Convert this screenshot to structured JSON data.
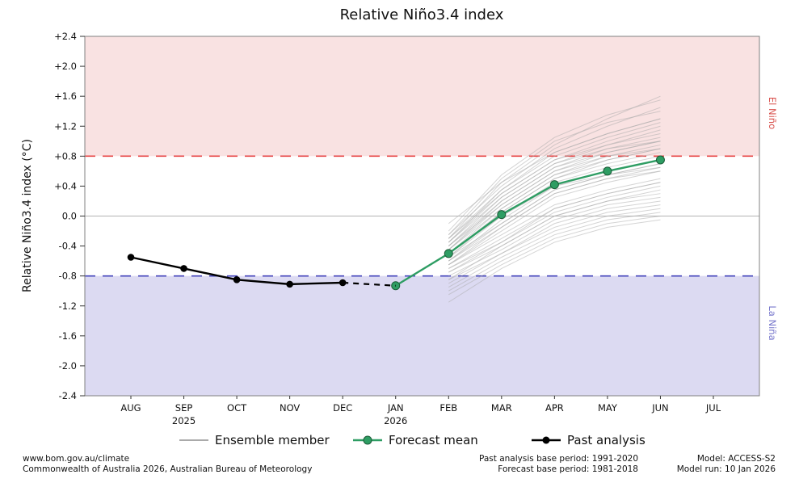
{
  "title": "Relative Niño3.4 index",
  "ylabel": "Relative Niño3.4 index (°C)",
  "right_labels": {
    "el_nino": "El Niño",
    "la_nina": "La Niña"
  },
  "legend": {
    "ensemble": "Ensemble member",
    "forecast": "Forecast mean",
    "past": "Past analysis"
  },
  "footer": {
    "url": "www.bom.gov.au/climate",
    "copyright": "Commonwealth of Australia 2026, Australian Bureau of Meteorology",
    "past_base": "Past analysis base period: 1991-2020",
    "forecast_base": "Forecast base period: 1981-2018",
    "model": "Model: ACCESS-S2",
    "model_run": "Model run: 10 Jan 2026"
  },
  "colors": {
    "el_nino_band": "#f9e2e2",
    "la_nina_band": "#dcdaf2",
    "el_nino_line": "#e84545",
    "la_nina_line": "#4444bb",
    "zero_line": "#b3b3b3",
    "forecast": "#2e9d63",
    "forecast_edge": "#1c5c38",
    "past": "#000000",
    "ensemble": "#aaaaaa",
    "border": "#808080"
  },
  "chart_data": {
    "type": "line",
    "categories": [
      "AUG",
      "SEP",
      "OCT",
      "NOV",
      "DEC",
      "JAN",
      "FEB",
      "MAR",
      "APR",
      "MAY",
      "JUN",
      "JUL"
    ],
    "year_labels": [
      {
        "index": 1,
        "label": "2025"
      },
      {
        "index": 5,
        "label": "2026"
      }
    ],
    "ylim": [
      -2.4,
      2.4
    ],
    "yticks": [
      2.4,
      2.0,
      1.6,
      1.2,
      0.8,
      0.4,
      0.0,
      -0.4,
      -0.8,
      -1.2,
      -1.6,
      -2.0,
      -2.4
    ],
    "ytick_labels": [
      "+2.4",
      "+2.0",
      "+1.6",
      "+1.2",
      "+0.8",
      "+0.4",
      "0.0",
      "-0.4",
      "-0.8",
      "-1.2",
      "-1.6",
      "-2.0",
      "-2.4"
    ],
    "thresholds": {
      "el_nino": 0.8,
      "la_nina": -0.8
    },
    "past_analysis": {
      "start_index": 0,
      "values": [
        -0.55,
        -0.7,
        -0.85,
        -0.91,
        -0.89
      ],
      "dashed_to": {
        "index": 5,
        "value": -0.93
      }
    },
    "forecast_mean": {
      "start_index": 5,
      "values": [
        -0.93,
        -0.5,
        0.02,
        0.42,
        0.6,
        0.75
      ]
    },
    "ensemble_start_index": 6,
    "ensemble_x": [
      "FEB",
      "MAR",
      "APR",
      "MAY",
      "JUN"
    ],
    "ensemble_members": [
      [
        -0.55,
        -0.1,
        0.35,
        0.55,
        0.7
      ],
      [
        -0.45,
        0.1,
        0.55,
        0.75,
        0.9
      ],
      [
        -0.65,
        -0.25,
        0.15,
        0.35,
        0.5
      ],
      [
        -0.35,
        0.25,
        0.7,
        0.95,
        1.1
      ],
      [
        -0.75,
        -0.4,
        0.0,
        0.2,
        0.3
      ],
      [
        -0.5,
        0.0,
        0.45,
        0.65,
        0.8
      ],
      [
        -0.3,
        0.35,
        0.85,
        1.1,
        1.3
      ],
      [
        -0.85,
        -0.5,
        -0.15,
        0.05,
        0.15
      ],
      [
        -0.6,
        -0.15,
        0.3,
        0.5,
        0.65
      ],
      [
        -0.4,
        0.15,
        0.6,
        0.85,
        1.0
      ],
      [
        -0.95,
        -0.55,
        -0.2,
        0.0,
        0.1
      ],
      [
        -0.25,
        0.4,
        0.9,
        1.2,
        1.45
      ],
      [
        -0.7,
        -0.3,
        0.1,
        0.3,
        0.45
      ],
      [
        -0.5,
        0.05,
        0.5,
        0.7,
        0.85
      ],
      [
        -1.05,
        -0.65,
        -0.3,
        -0.1,
        0.0
      ],
      [
        -0.35,
        0.3,
        0.75,
        1.0,
        1.2
      ],
      [
        -0.6,
        -0.05,
        0.4,
        0.6,
        0.75
      ],
      [
        -0.45,
        0.2,
        0.65,
        0.9,
        1.05
      ],
      [
        -0.8,
        -0.45,
        -0.05,
        0.15,
        0.25
      ],
      [
        -0.3,
        0.45,
        0.95,
        1.3,
        1.6
      ],
      [
        -0.65,
        -0.2,
        0.25,
        0.45,
        0.6
      ],
      [
        -0.55,
        0.0,
        0.4,
        0.55,
        0.65
      ],
      [
        -1.15,
        -0.7,
        -0.35,
        -0.15,
        -0.05
      ],
      [
        -0.4,
        0.25,
        0.7,
        0.9,
        1.0
      ],
      [
        -0.7,
        -0.35,
        0.05,
        0.25,
        0.4
      ],
      [
        -0.25,
        0.5,
        1.0,
        1.25,
        1.4
      ],
      [
        -0.85,
        -0.4,
        0.0,
        0.2,
        0.35
      ],
      [
        -0.5,
        0.1,
        0.55,
        0.8,
        0.95
      ],
      [
        -0.6,
        -0.1,
        0.35,
        0.55,
        0.7
      ],
      [
        -0.35,
        0.35,
        0.8,
        1.05,
        1.25
      ],
      [
        -0.9,
        -0.5,
        -0.1,
        0.1,
        0.2
      ],
      [
        -0.45,
        0.15,
        0.6,
        0.8,
        0.9
      ],
      [
        -0.2,
        0.55,
        1.05,
        1.35,
        1.55
      ],
      [
        -0.75,
        -0.35,
        0.1,
        0.3,
        0.45
      ],
      [
        -0.55,
        0.05,
        0.5,
        0.75,
        0.9
      ],
      [
        -1.0,
        -0.6,
        -0.25,
        -0.05,
        0.05
      ],
      [
        -0.3,
        0.3,
        0.75,
        0.95,
        1.15
      ],
      [
        -0.65,
        -0.15,
        0.3,
        0.5,
        0.6
      ],
      [
        -0.4,
        0.2,
        0.65,
        0.85,
        1.0
      ],
      [
        -0.1,
        0.45,
        0.85,
        1.1,
        1.3
      ]
    ]
  }
}
